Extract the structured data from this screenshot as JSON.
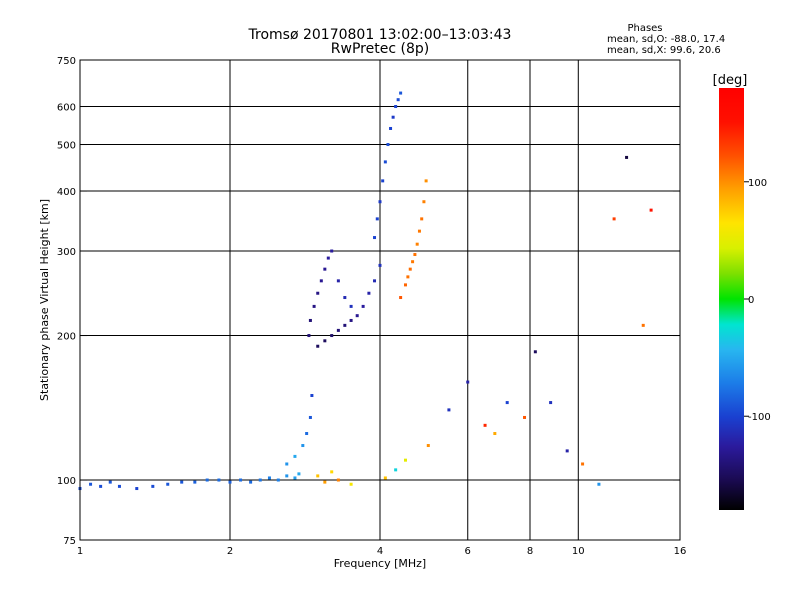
{
  "chart_data": {
    "type": "scatter",
    "title": "Tromsø 20170801 13:02:00–13:03:43",
    "subtitle": "RwPretec (8p)",
    "phases_header": {
      "title": "Phases",
      "line1": "mean, sd,O: -88.0, 17.4",
      "line2": "mean, sd,X:  99.6, 20.6"
    },
    "xlabel": "Frequency [MHz]",
    "ylabel": "Stationary phase Virtual Height [km]",
    "x_scale": "log2",
    "y_scale": "log",
    "xlim": [
      1,
      16
    ],
    "ylim": [
      75,
      750
    ],
    "x_ticks": [
      1,
      2,
      4,
      6,
      8,
      10,
      16
    ],
    "x_tick_labels": [
      "1",
      "2",
      "4",
      "6",
      "8",
      "10",
      "16"
    ],
    "y_ticks": [
      75,
      100,
      200,
      300,
      400,
      500,
      600,
      750
    ],
    "y_tick_labels": [
      "75",
      "100",
      "200",
      "300",
      "400",
      "500",
      "600",
      "750"
    ],
    "grid": true,
    "colorbar": {
      "label": "[deg]",
      "range": [
        -180,
        180
      ],
      "ticks": [
        100,
        0,
        -100
      ],
      "tick_labels": [
        "100",
        "0",
        "-100"
      ]
    },
    "series": [
      {
        "x": [
          1.0,
          1.05,
          1.1,
          1.15,
          1.2,
          1.3,
          1.4,
          1.5,
          1.6,
          1.7,
          1.8,
          1.9,
          2.0,
          2.1,
          2.2,
          2.3,
          2.4,
          2.5,
          2.6,
          2.7,
          2.75
        ],
        "y": [
          96,
          98,
          97,
          99,
          97,
          96,
          97,
          98,
          99,
          99,
          100,
          100,
          99,
          100,
          99,
          100,
          101,
          100,
          102,
          101,
          103
        ],
        "phase": [
          -95,
          -90,
          -95,
          -90,
          -95,
          -100,
          -95,
          -90,
          -90,
          -85,
          -80,
          -80,
          -85,
          -80,
          -80,
          -75,
          -70,
          -70,
          -60,
          -55,
          -50
        ]
      },
      {
        "x": [
          2.6,
          2.7,
          2.8,
          2.85,
          2.9,
          2.92
        ],
        "y": [
          108,
          112,
          118,
          125,
          135,
          150
        ],
        "phase": [
          -60,
          -50,
          -60,
          -80,
          -90,
          -100
        ]
      },
      {
        "x": [
          2.88,
          2.9,
          2.95,
          3.0,
          3.05,
          3.1,
          3.15,
          3.2,
          3.3,
          3.4,
          3.5
        ],
        "y": [
          200,
          215,
          230,
          245,
          260,
          275,
          290,
          300,
          260,
          240,
          230
        ],
        "phase": [
          -140,
          -140,
          -135,
          -135,
          -130,
          -130,
          -125,
          -125,
          -120,
          -115,
          -110
        ]
      },
      {
        "x": [
          3.0,
          3.1,
          3.2,
          3.3,
          3.4,
          3.5,
          3.6,
          3.7,
          3.8,
          3.9,
          4.0
        ],
        "y": [
          190,
          195,
          200,
          205,
          210,
          215,
          220,
          230,
          245,
          260,
          280
        ],
        "phase": [
          -150,
          -150,
          -145,
          -140,
          -140,
          -135,
          -130,
          -125,
          -120,
          -115,
          -110
        ]
      },
      {
        "x": [
          3.9,
          3.95,
          4.0,
          4.05,
          4.1,
          4.15,
          4.2,
          4.25,
          4.3,
          4.35,
          4.4
        ],
        "y": [
          320,
          350,
          380,
          420,
          460,
          500,
          540,
          570,
          600,
          620,
          640
        ],
        "phase": [
          -100,
          -100,
          -105,
          -100,
          -95,
          -95,
          -100,
          -105,
          -100,
          -95,
          -90
        ]
      },
      {
        "x": [
          4.4,
          4.5,
          4.55,
          4.6,
          4.65,
          4.7,
          4.75,
          4.8,
          4.85,
          4.9,
          4.95
        ],
        "y": [
          240,
          255,
          265,
          275,
          285,
          295,
          310,
          330,
          350,
          380,
          420
        ],
        "phase": [
          120,
          115,
          110,
          112,
          108,
          110,
          105,
          108,
          110,
          105,
          100
        ]
      },
      {
        "x": [
          3.0,
          3.1,
          3.2,
          3.3,
          3.5,
          4.1,
          4.3,
          4.5,
          5.0,
          5.5,
          6.0,
          6.5,
          6.8,
          7.2,
          7.8,
          8.2,
          8.8,
          9.5,
          10.2,
          11.0,
          11.8,
          12.5,
          13.5,
          14.0
        ],
        "y": [
          102,
          99,
          104,
          100,
          98,
          101,
          105,
          110,
          118,
          140,
          160,
          130,
          125,
          145,
          135,
          185,
          145,
          115,
          108,
          98,
          350,
          470,
          210,
          365
        ],
        "phase": [
          80,
          95,
          70,
          105,
          60,
          80,
          -30,
          50,
          100,
          -110,
          -120,
          140,
          90,
          -100,
          120,
          -150,
          -110,
          -120,
          110,
          -60,
          130,
          -160,
          110,
          150
        ]
      }
    ]
  }
}
